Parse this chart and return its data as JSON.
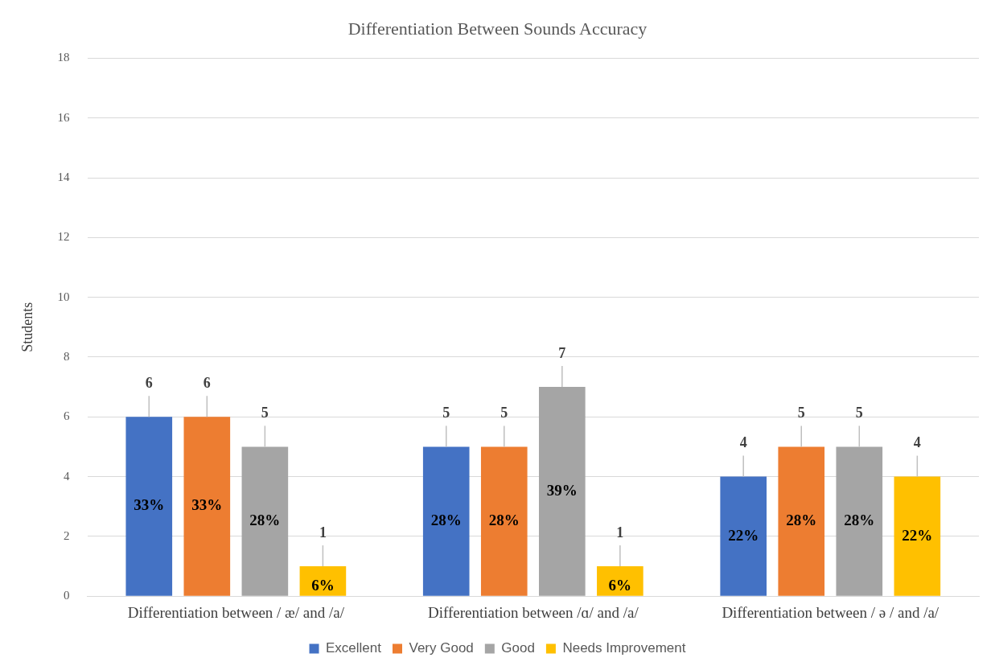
{
  "chart_data": {
    "type": "bar",
    "title": "Differentiation Between Sounds Accuracy",
    "ylabel": "Students",
    "categories": [
      "Differentiation between / æ/ and /a/",
      "Differentiation between /ɑ/ and /a/",
      "Differentiation between / ə / and /a/"
    ],
    "series": [
      {
        "name": "Excellent",
        "color": "#4472c4",
        "values": [
          6,
          5,
          4
        ]
      },
      {
        "name": "Very Good",
        "color": "#ed7d31",
        "values": [
          6,
          5,
          5
        ]
      },
      {
        "name": "Good",
        "color": "#a5a5a5",
        "values": [
          5,
          7,
          5
        ]
      },
      {
        "name": "Needs Improvement",
        "color": "#ffc000",
        "values": [
          1,
          1,
          4
        ]
      }
    ],
    "annotations": [
      "33%",
      "33%",
      "28%",
      "6%",
      "28%",
      "28%",
      "39%",
      "6%",
      "22%",
      "28%",
      "28%",
      "22%"
    ],
    "ylim": [
      0,
      18
    ],
    "yticks": [
      0,
      2,
      4,
      6,
      8,
      10,
      12,
      14,
      16,
      18
    ],
    "grid": "y",
    "legend": "bottom",
    "data_labels": true
  }
}
